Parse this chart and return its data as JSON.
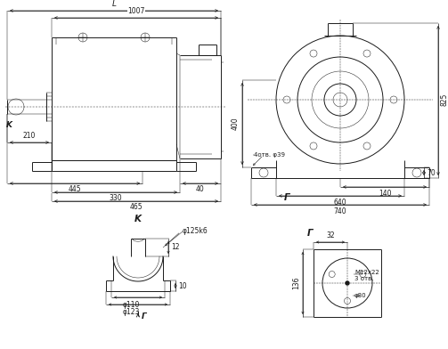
{
  "bg_color": "#ffffff",
  "line_color": "#1a1a1a",
  "lw": 0.7,
  "tlw": 0.35,
  "fs": 5.5,
  "fig_w": 5.03,
  "fig_h": 3.92,
  "ann": {
    "L": "L",
    "d1007": "1007",
    "d210": "210",
    "d445": "445",
    "d330": "330",
    "d40": "40",
    "d465": "465",
    "K": "K",
    "G": "Г",
    "d825": "825",
    "d400": "400",
    "d70": "70",
    "d140": "140",
    "d640": "640",
    "d740": "740",
    "d4otv": "4отв. φ39",
    "dphi125": "φ125k6",
    "d12": "12",
    "dphi110": "φ110",
    "d10": "10",
    "dphi123": "φ123",
    "d32": "32",
    "M12x22": "M12x22",
    "d3otv": "3 отв.",
    "dphi80": "φ80",
    "d136": "136"
  }
}
